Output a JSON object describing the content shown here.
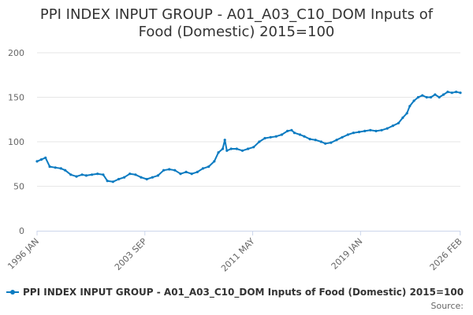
{
  "chart_data": {
    "type": "line",
    "title_line1": "PPI INDEX INPUT GROUP - A01_A03_C10_DOM Inputs of",
    "title_line2": "Food (Domestic) 2015=100",
    "xlabel": "",
    "ylabel": "",
    "ylim": [
      0,
      200
    ],
    "y_ticks": [
      "0",
      "50",
      "100",
      "150",
      "200"
    ],
    "x_ticks": [
      "1996 JAN",
      "2003 SEP",
      "2011 MAY",
      "2019 JAN",
      "2026 FEB"
    ],
    "grid": true,
    "legend_position": "bottom",
    "series": [
      {
        "name": "PPI INDEX INPUT GROUP - A01_A03_C10_DOM Inputs of Food (Domestic) 2015=100",
        "color": "#0b7bc1",
        "points": [
          [
            1996.0,
            78
          ],
          [
            1996.3,
            80
          ],
          [
            1996.6,
            82
          ],
          [
            1996.9,
            72
          ],
          [
            1997.3,
            71
          ],
          [
            1997.7,
            70
          ],
          [
            1998.0,
            68
          ],
          [
            1998.4,
            63
          ],
          [
            1998.8,
            61
          ],
          [
            1999.2,
            63
          ],
          [
            1999.5,
            62
          ],
          [
            1999.9,
            63
          ],
          [
            2000.3,
            64
          ],
          [
            2000.7,
            63
          ],
          [
            2001.0,
            56
          ],
          [
            2001.4,
            55
          ],
          [
            2001.8,
            58
          ],
          [
            2002.2,
            60
          ],
          [
            2002.6,
            64
          ],
          [
            2003.0,
            63
          ],
          [
            2003.4,
            60
          ],
          [
            2003.8,
            58
          ],
          [
            2004.2,
            60
          ],
          [
            2004.6,
            62
          ],
          [
            2005.0,
            68
          ],
          [
            2005.4,
            69
          ],
          [
            2005.8,
            68
          ],
          [
            2006.2,
            64
          ],
          [
            2006.6,
            66
          ],
          [
            2007.0,
            64
          ],
          [
            2007.4,
            66
          ],
          [
            2007.8,
            70
          ],
          [
            2008.2,
            72
          ],
          [
            2008.6,
            78
          ],
          [
            2008.9,
            88
          ],
          [
            2009.2,
            92
          ],
          [
            2009.35,
            102
          ],
          [
            2009.5,
            90
          ],
          [
            2009.8,
            92
          ],
          [
            2010.2,
            92
          ],
          [
            2010.6,
            90
          ],
          [
            2011.0,
            92
          ],
          [
            2011.4,
            94
          ],
          [
            2011.8,
            100
          ],
          [
            2012.2,
            104
          ],
          [
            2012.6,
            105
          ],
          [
            2013.0,
            106
          ],
          [
            2013.4,
            108
          ],
          [
            2013.8,
            112
          ],
          [
            2014.1,
            113
          ],
          [
            2014.3,
            110
          ],
          [
            2014.7,
            108
          ],
          [
            2015.0,
            106
          ],
          [
            2015.4,
            103
          ],
          [
            2015.8,
            102
          ],
          [
            2016.2,
            100
          ],
          [
            2016.5,
            98
          ],
          [
            2016.9,
            99
          ],
          [
            2017.3,
            102
          ],
          [
            2017.7,
            105
          ],
          [
            2018.1,
            108
          ],
          [
            2018.5,
            110
          ],
          [
            2018.9,
            111
          ],
          [
            2019.3,
            112
          ],
          [
            2019.7,
            113
          ],
          [
            2020.1,
            112
          ],
          [
            2020.5,
            113
          ],
          [
            2020.9,
            115
          ],
          [
            2021.3,
            118
          ],
          [
            2021.7,
            121
          ],
          [
            2022.0,
            127
          ],
          [
            2022.3,
            132
          ],
          [
            2022.5,
            140
          ],
          [
            2022.8,
            146
          ],
          [
            2023.1,
            150
          ],
          [
            2023.4,
            152
          ],
          [
            2023.7,
            150
          ],
          [
            2024.0,
            150
          ],
          [
            2024.3,
            153
          ],
          [
            2024.6,
            150
          ],
          [
            2024.9,
            153
          ],
          [
            2025.2,
            156
          ],
          [
            2025.5,
            155
          ],
          [
            2025.8,
            156
          ],
          [
            2026.1,
            155
          ]
        ]
      }
    ],
    "source_label": "Source:"
  }
}
